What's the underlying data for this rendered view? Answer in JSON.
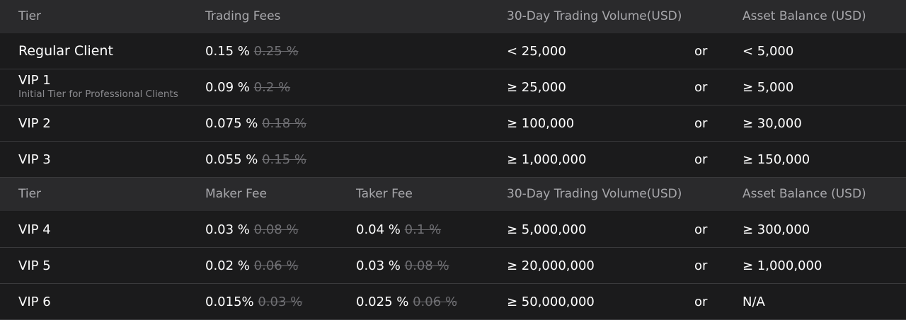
{
  "section1": {
    "headers": {
      "tier": "Tier",
      "fees": "Trading Fees",
      "volume": "30-Day Trading Volume(USD)",
      "balance": "Asset Balance (USD)"
    },
    "rows": [
      {
        "tier": "Regular Client",
        "subtitle": "",
        "fee": "0.15 %",
        "fee_old": "0.25 %",
        "volume": "<  25,000",
        "or": "or",
        "balance": "< 5,000"
      },
      {
        "tier": "VIP 1",
        "subtitle": "Initial Tier for Professional Clients",
        "fee": "0.09 %",
        "fee_old": "0.2 %",
        "volume": "≥ 25,000",
        "or": "or",
        "balance": "≥ 5,000"
      },
      {
        "tier": "VIP 2",
        "subtitle": "",
        "fee": "0.075 %",
        "fee_old": "0.18 %",
        "volume": "≥ 100,000",
        "or": "or",
        "balance": "≥ 30,000"
      },
      {
        "tier": "VIP 3",
        "subtitle": "",
        "fee": "0.055 %",
        "fee_old": "0.15 %",
        "volume": "≥ 1,000,000",
        "or": "or",
        "balance": "≥ 150,000"
      }
    ]
  },
  "section2": {
    "headers": {
      "tier": "Tier",
      "maker": "Maker Fee",
      "taker": "Taker Fee",
      "volume": "30-Day Trading Volume(USD)",
      "balance": "Asset Balance (USD)"
    },
    "rows": [
      {
        "tier": "VIP 4",
        "maker": "0.03 %",
        "maker_old": "0.08 %",
        "taker": "0.04 %",
        "taker_old": "0.1 %",
        "volume": "≥ 5,000,000",
        "or": "or",
        "balance": "≥ 300,000"
      },
      {
        "tier": "VIP 5",
        "maker": "0.02 %",
        "maker_old": "0.06 %",
        "taker": "0.03 %",
        "taker_old": "0.08 %",
        "volume": "≥ 20,000,000",
        "or": "or",
        "balance": "≥ 1,000,000"
      },
      {
        "tier": "VIP 6",
        "maker": "0.015%",
        "maker_old": "0.03 %",
        "taker": "0.025 %",
        "taker_old": "0.06 %",
        "volume": "≥ 50,000,000",
        "or": "or",
        "balance": "N/A"
      }
    ]
  },
  "colors": {
    "background": "#1b1b1c",
    "header_background": "#2a2a2c",
    "header_text": "#a8a8ac",
    "strikethrough_text": "#6f6f73",
    "divider": "#3a3a3c"
  }
}
